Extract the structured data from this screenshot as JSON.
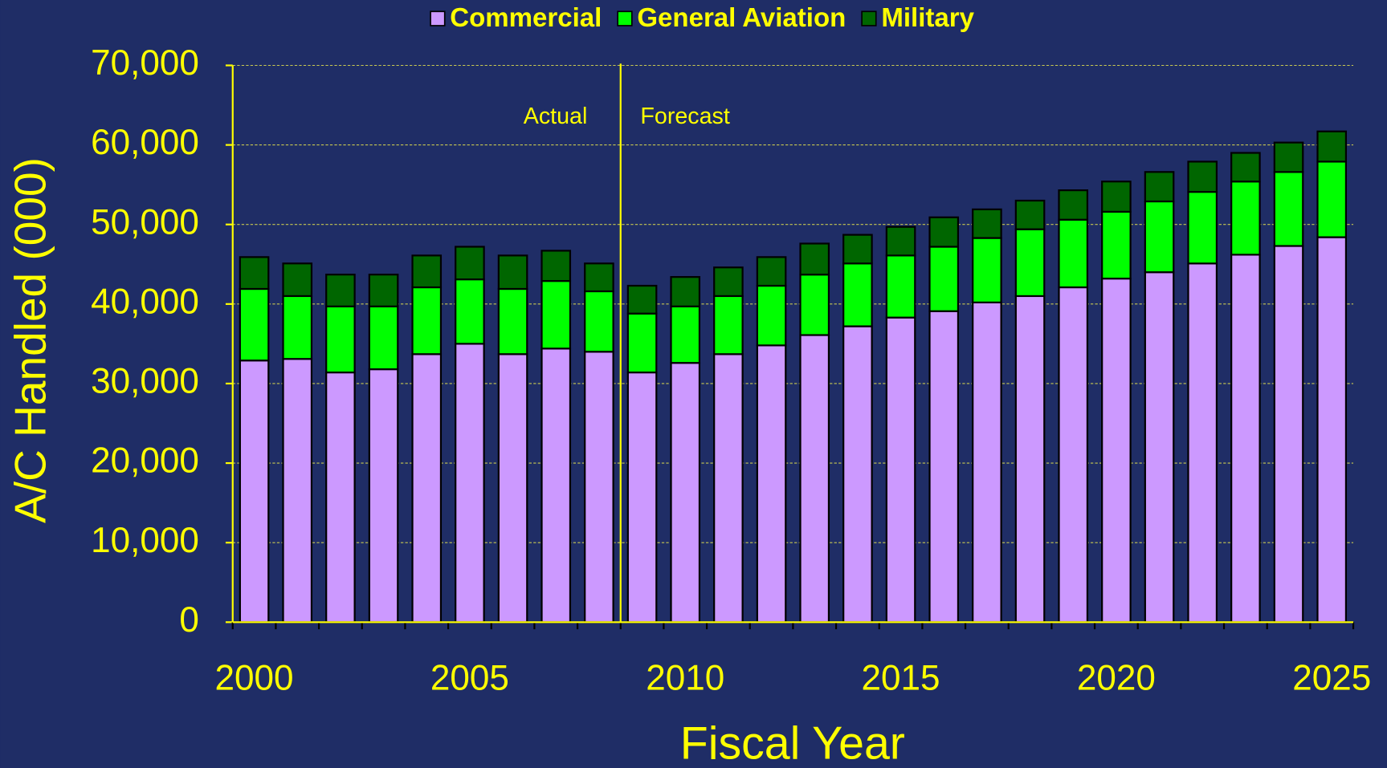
{
  "chart_data": {
    "type": "stacked_bar",
    "x_label": "Fiscal Year",
    "y_label": "A/C Handled (000)",
    "annotations": [
      "Actual",
      "Forecast"
    ],
    "categories": [
      "2000",
      null,
      null,
      null,
      null,
      "2005",
      null,
      null,
      null,
      null,
      "2010",
      null,
      null,
      null,
      null,
      "2015",
      null,
      null,
      null,
      null,
      "2020",
      null,
      null,
      null,
      null,
      "2025"
    ],
    "series": [
      {
        "name": "Commercial",
        "color": "#cc99ff",
        "values": [
          32900,
          33100,
          31400,
          31800,
          33700,
          35000,
          33700,
          34400,
          34000,
          31400,
          32600,
          33700,
          34800,
          36100,
          37200,
          38300,
          39100,
          40200,
          41000,
          42100,
          43200,
          44000,
          45100,
          46200,
          47300,
          48400
        ]
      },
      {
        "name": "General Aviation",
        "color": "#00ff00",
        "values": [
          9000,
          7900,
          8300,
          7900,
          8400,
          8100,
          8200,
          8500,
          7600,
          7400,
          7100,
          7300,
          7500,
          7600,
          7900,
          7800,
          8100,
          8100,
          8400,
          8500,
          8400,
          8900,
          9000,
          9200,
          9300,
          9500
        ]
      },
      {
        "name": "Military",
        "color": "#006600",
        "values": [
          4000,
          4100,
          4000,
          4000,
          4000,
          4100,
          4200,
          3800,
          3500,
          3500,
          3700,
          3600,
          3600,
          3900,
          3600,
          3600,
          3700,
          3600,
          3600,
          3700,
          3800,
          3700,
          3800,
          3600,
          3700,
          3800
        ]
      }
    ],
    "ylim": [
      0,
      70000
    ],
    "yticks": [
      0,
      {
        "value": 10000,
        "label": "10,000"
      },
      {
        "value": 20000,
        "label": "20,000"
      },
      {
        "value": 30000,
        "label": "30,000"
      },
      {
        "value": 40000,
        "label": "40,000"
      },
      {
        "value": 50000,
        "label": "50,000"
      },
      {
        "value": 60000,
        "label": "60,000"
      },
      {
        "value": 70000,
        "label": "70,000"
      }
    ],
    "grid": true,
    "legend": "top"
  }
}
